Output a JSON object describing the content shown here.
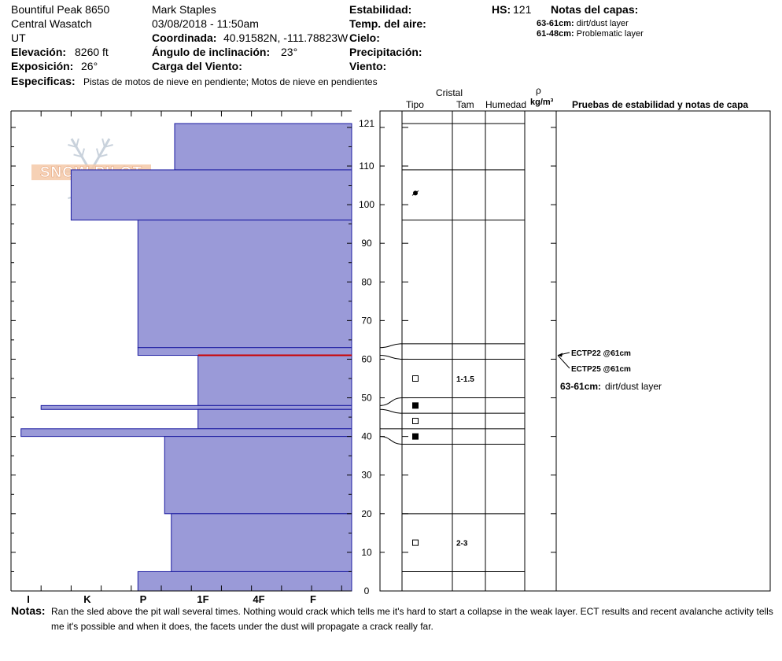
{
  "header": {
    "location": "Bountiful Peak 8650",
    "range": "Central Wasatch",
    "state": "UT",
    "elevation_label": "Elevación:",
    "elevation_value": "8260 ft",
    "aspect_label": "Exposición:",
    "aspect_value": "26°",
    "observer": "Mark Staples",
    "datetime": "03/08/2018 - 11:50am",
    "coord_label": "Coordinada:",
    "coord_value": "40.91582N, -111.78823W",
    "slope_label": "Ángulo de inclinación:",
    "slope_value": "23°",
    "wind_load_label": "Carga del Viento:",
    "stability_label": "Estabilidad:",
    "air_temp_label": "Temp. del aire:",
    "sky_label": "Cielo:",
    "precip_label": "Precipitación:",
    "wind_label": "Viento:",
    "hs_label": "HS:",
    "hs_value": "121",
    "layer_notes_label": "Notas del capas:",
    "layer_notes": [
      {
        "range": "63-61cm:",
        "text": "dirt/dust layer"
      },
      {
        "range": "61-48cm:",
        "text": "Problematic layer"
      }
    ],
    "specifics_label": "Especificas:",
    "specifics_value": "Pistas de motos de nieve en pendiente;  Motos de nieve en pendientes"
  },
  "logo": {
    "text": "SNOW PILOT"
  },
  "columns": {
    "crystal": "Cristal",
    "type": "Tipo",
    "size": "Tam",
    "moisture": "Humedad",
    "rho": "ρ",
    "density_unit": "kg/m³",
    "tests": "Pruebas de estabilidad y notas de capa"
  },
  "chart_data": {
    "type": "bar",
    "y_axis": {
      "min": 0,
      "max": 121,
      "ticks": [
        0,
        10,
        20,
        30,
        40,
        50,
        60,
        70,
        80,
        90,
        100,
        110,
        121
      ]
    },
    "hardness_scale": [
      "I",
      "K",
      "P",
      "1F",
      "4F",
      "F"
    ],
    "layers": [
      {
        "top": 121,
        "bottom": 109,
        "hardness": 5.3
      },
      {
        "top": 109,
        "bottom": 96,
        "hardness": 8.4
      },
      {
        "top": 96,
        "bottom": 63,
        "hardness": 6.4
      },
      {
        "top": 63,
        "bottom": 61,
        "hardness": 6.4
      },
      {
        "top": 61,
        "bottom": 48,
        "hardness": 4.6
      },
      {
        "top": 48,
        "bottom": 47,
        "hardness": 9.3
      },
      {
        "top": 47,
        "bottom": 42,
        "hardness": 4.6
      },
      {
        "top": 42,
        "bottom": 40,
        "hardness": 9.9
      },
      {
        "top": 40,
        "bottom": 20,
        "hardness": 5.6
      },
      {
        "top": 20,
        "bottom": 5,
        "hardness": 5.4
      },
      {
        "top": 5,
        "bottom": 0,
        "hardness": 6.4
      }
    ],
    "weak_layer_line": 61,
    "layer_boundaries": [
      121,
      109,
      96,
      64,
      60,
      50,
      46,
      42,
      38,
      20,
      5
    ],
    "grain_symbols": [
      {
        "height": 103,
        "type": "dot",
        "size": ""
      },
      {
        "height": 55,
        "type": "square-open",
        "size": "1-1.5"
      },
      {
        "height": 48,
        "type": "square-filled",
        "size": ""
      },
      {
        "height": 44,
        "type": "square-open",
        "size": ""
      },
      {
        "height": 40,
        "type": "square-filled",
        "size": ""
      },
      {
        "height": 12.5,
        "type": "square-open",
        "size": "2-3"
      }
    ],
    "tests": [
      {
        "label": "ECTP22 @61cm",
        "height": 61
      },
      {
        "label": "ECTP25 @61cm",
        "height": 61
      }
    ],
    "test_layer_note": {
      "range": "63-61cm:",
      "text": "dirt/dust layer"
    },
    "colors": {
      "fill": "#9a9ad8",
      "stroke": "#1a1aa0",
      "weak_line": "#cc0000"
    }
  },
  "notes": {
    "label": "Notas:",
    "text": "Ran the sled above the pit wall several times. Nothing would crack which tells me it's hard to start a collapse in the weak layer. ECT results and recent avalanche activity tells  me it's possible and when it does, the facets under the dust will propagate a crack really far."
  }
}
